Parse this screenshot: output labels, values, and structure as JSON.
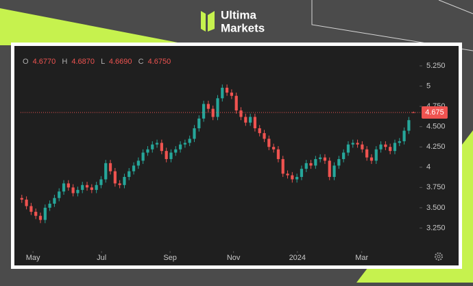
{
  "brand": {
    "line1": "Ultima",
    "line2": "Markets"
  },
  "chart_data": {
    "type": "candlestick",
    "ohlc_legend": [
      {
        "key": "O",
        "value": "4.6770"
      },
      {
        "key": "H",
        "value": "4.6870"
      },
      {
        "key": "L",
        "value": "4.6690"
      },
      {
        "key": "C",
        "value": "4.6750"
      }
    ],
    "colors": {
      "up": "#26a69a",
      "down": "#ef5350"
    },
    "open": [
      3.62,
      3.6,
      3.52,
      3.45,
      3.4,
      3.35,
      3.5,
      3.55,
      3.62,
      3.7,
      3.8,
      3.75,
      3.68,
      3.72,
      3.78,
      3.75,
      3.72,
      3.78,
      3.85,
      4.05,
      3.95,
      3.8,
      3.78,
      3.88,
      3.95,
      4.02,
      4.08,
      4.18,
      4.22,
      4.28,
      4.3,
      4.2,
      4.1,
      4.18,
      4.22,
      4.28,
      4.3,
      4.35,
      4.48,
      4.6,
      4.78,
      4.72,
      4.62,
      4.85,
      4.98,
      4.92,
      4.88,
      4.7,
      4.62,
      4.55,
      4.62,
      4.48,
      4.42,
      4.35,
      4.25,
      4.22,
      4.1,
      3.92,
      3.9,
      3.85,
      3.88,
      3.98,
      4.05,
      4.02,
      4.1,
      4.12,
      4.08,
      3.88,
      4.02,
      4.1,
      4.18,
      4.28,
      4.3,
      4.28,
      4.22,
      4.12,
      4.08,
      4.22,
      4.28,
      4.25,
      4.2,
      4.3,
      4.32,
      4.45,
      4.677
    ],
    "high": [
      3.66,
      3.64,
      3.56,
      3.49,
      3.44,
      3.54,
      3.59,
      3.66,
      3.74,
      3.84,
      3.84,
      3.79,
      3.76,
      3.82,
      3.82,
      3.79,
      3.82,
      3.89,
      4.09,
      4.09,
      3.99,
      3.84,
      3.92,
      3.99,
      4.06,
      4.12,
      4.22,
      4.26,
      4.32,
      4.34,
      4.34,
      4.24,
      4.22,
      4.26,
      4.32,
      4.34,
      4.39,
      4.52,
      4.64,
      4.82,
      4.82,
      4.76,
      4.89,
      5.02,
      5.02,
      4.96,
      4.92,
      4.74,
      4.66,
      4.66,
      4.66,
      4.52,
      4.46,
      4.39,
      4.29,
      4.26,
      4.14,
      3.96,
      3.94,
      3.92,
      4.02,
      4.09,
      4.09,
      4.14,
      4.16,
      4.16,
      4.12,
      4.06,
      4.14,
      4.22,
      4.32,
      4.34,
      4.34,
      4.32,
      4.26,
      4.16,
      4.26,
      4.32,
      4.32,
      4.29,
      4.34,
      4.36,
      4.49,
      4.62,
      4.687
    ],
    "low": [
      3.56,
      3.48,
      3.41,
      3.36,
      3.31,
      3.31,
      3.46,
      3.51,
      3.58,
      3.66,
      3.71,
      3.64,
      3.64,
      3.68,
      3.71,
      3.68,
      3.68,
      3.74,
      3.81,
      3.91,
      3.76,
      3.74,
      3.74,
      3.84,
      3.91,
      3.98,
      4.04,
      4.14,
      4.18,
      4.24,
      4.16,
      4.06,
      4.06,
      4.14,
      4.18,
      4.24,
      4.26,
      4.31,
      4.44,
      4.56,
      4.68,
      4.58,
      4.58,
      4.81,
      4.88,
      4.84,
      4.66,
      4.58,
      4.51,
      4.51,
      4.44,
      4.38,
      4.31,
      4.21,
      4.18,
      4.06,
      3.88,
      3.86,
      3.81,
      3.81,
      3.84,
      3.94,
      3.98,
      3.98,
      4.06,
      4.04,
      3.84,
      3.84,
      3.98,
      4.06,
      4.14,
      4.24,
      4.24,
      4.18,
      4.08,
      4.04,
      4.04,
      4.18,
      4.21,
      4.16,
      4.16,
      4.26,
      4.28,
      4.41,
      4.669
    ],
    "close": [
      3.6,
      3.52,
      3.45,
      3.4,
      3.35,
      3.5,
      3.55,
      3.62,
      3.7,
      3.8,
      3.75,
      3.68,
      3.72,
      3.78,
      3.75,
      3.72,
      3.78,
      3.85,
      4.05,
      3.95,
      3.8,
      3.78,
      3.88,
      3.95,
      4.02,
      4.08,
      4.18,
      4.22,
      4.28,
      4.3,
      4.2,
      4.1,
      4.18,
      4.22,
      4.28,
      4.3,
      4.35,
      4.48,
      4.6,
      4.78,
      4.72,
      4.62,
      4.85,
      4.98,
      4.92,
      4.88,
      4.7,
      4.62,
      4.55,
      4.62,
      4.48,
      4.42,
      4.35,
      4.25,
      4.22,
      4.1,
      3.92,
      3.9,
      3.85,
      3.88,
      3.98,
      4.05,
      4.02,
      4.1,
      4.12,
      4.08,
      3.88,
      4.02,
      4.1,
      4.18,
      4.28,
      4.3,
      4.28,
      4.22,
      4.12,
      4.08,
      4.22,
      4.28,
      4.25,
      4.2,
      4.3,
      4.32,
      4.45,
      4.58,
      4.675
    ],
    "last_price": 4.675,
    "xlim": [
      -1,
      85
    ],
    "xticks": [
      {
        "value": 2.4,
        "label": "May"
      },
      {
        "value": 17.1,
        "label": "Jul"
      },
      {
        "value": 31.8,
        "label": "Sep"
      },
      {
        "value": 45.4,
        "label": "Nov"
      },
      {
        "value": 59.1,
        "label": "2024"
      },
      {
        "value": 72.9,
        "label": "Mar"
      }
    ],
    "ylim": [
      3.0,
      5.47
    ],
    "yticks": [
      {
        "value": 3.25,
        "label": "3.250"
      },
      {
        "value": 3.5,
        "label": "3.500"
      },
      {
        "value": 3.75,
        "label": "3.750"
      },
      4,
      {
        "value": 4.25,
        "label": "4.250"
      },
      {
        "value": 4.5,
        "label": "4.500"
      },
      {
        "value": 4.75,
        "label": "4.750"
      },
      5,
      {
        "value": 5.25,
        "label": "5.250"
      }
    ]
  }
}
